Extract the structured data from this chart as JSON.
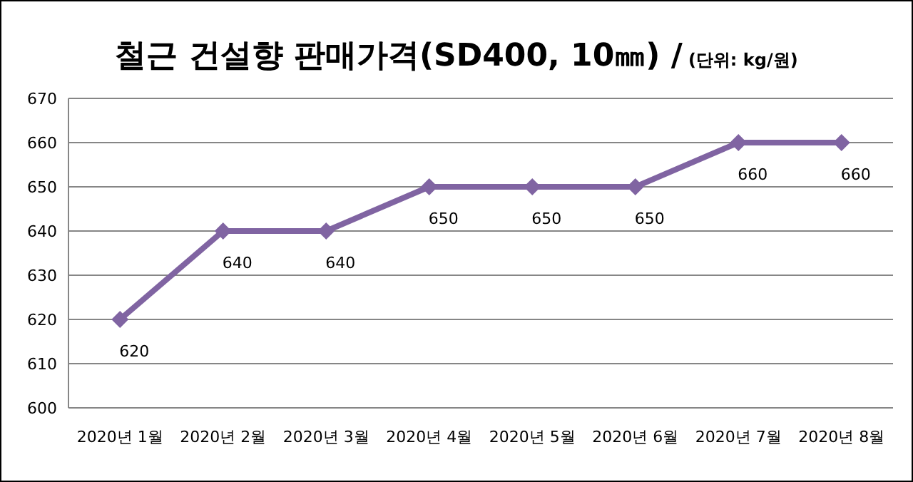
{
  "chart_data": {
    "type": "line",
    "title": "철근 건설향 판매가격(SD400, 10㎜) /",
    "subtitle": "(단위: kg/원)",
    "categories": [
      "2020년 1월",
      "2020년 2월",
      "2020년 3월",
      "2020년 4월",
      "2020년 5월",
      "2020년 6월",
      "2020년 7월",
      "2020년 8월"
    ],
    "series": [
      {
        "color": "#8064a2",
        "values": [
          620,
          640,
          640,
          650,
          650,
          650,
          660,
          660
        ]
      }
    ],
    "ylim": [
      600,
      670
    ],
    "yticks": [
      600,
      610,
      620,
      630,
      640,
      650,
      660,
      670
    ],
    "grid": "y",
    "marker": "diamond",
    "data_labels": true
  }
}
